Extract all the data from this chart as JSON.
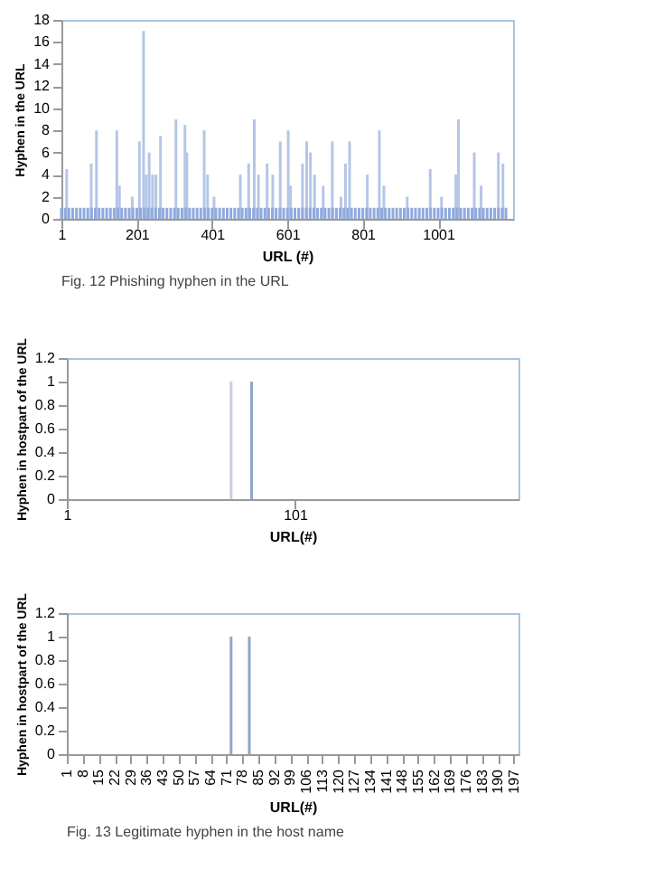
{
  "chart_data": [
    {
      "type": "bar",
      "xlabel": "URL (#)",
      "ylabel": "Hyphen in the URL",
      "xlim": [
        1,
        1200
      ],
      "xticks": [
        1,
        201,
        401,
        601,
        801,
        1001
      ],
      "ylim": [
        0,
        18
      ],
      "yticks": [
        0,
        2,
        4,
        6,
        8,
        10,
        12,
        14,
        16,
        18
      ],
      "annotations": [
        "Fig. 12 Phishing hyphen in the URL"
      ],
      "series": [
        {
          "color": "#b4c6e7",
          "x": [
            15,
            80,
            94,
            148,
            155,
            189,
            208,
            219,
            226,
            234,
            243,
            252,
            264,
            305,
            329,
            334,
            380,
            389,
            406,
            476,
            498,
            513,
            524,
            547,
            562,
            582,
            603,
            609,
            641,
            652,
            662,
            673,
            696,
            720,
            743,
            755,
            766,
            813,
            845,
            857,
            919,
            980,
            1010,
            1048,
            1055,
            1097,
            1115,
            1161,
            1173
          ],
          "values": [
            4.5,
            5,
            8,
            8,
            3,
            2,
            7,
            17,
            4,
            6,
            4,
            4,
            7.5,
            9,
            8.5,
            6,
            8,
            4,
            2,
            4,
            5,
            9,
            4,
            5,
            4,
            7,
            8,
            3,
            5,
            7,
            6,
            4,
            3,
            7,
            2,
            5,
            7,
            4,
            8,
            3,
            2,
            4.5,
            2,
            4,
            9,
            6,
            3,
            6,
            5
          ]
        },
        {
          "color": "#8faadc",
          "x": [
            1,
            11,
            21,
            31,
            41,
            51,
            61,
            71,
            81,
            91,
            101,
            111,
            121,
            131,
            141,
            151,
            161,
            171,
            181,
            191,
            201,
            211,
            221,
            231,
            241,
            251,
            261,
            271,
            281,
            291,
            301,
            311,
            321,
            331,
            341,
            351,
            361,
            371,
            381,
            391,
            401,
            411,
            421,
            431,
            441,
            451,
            461,
            471,
            481,
            491,
            501,
            511,
            521,
            531,
            541,
            551,
            561,
            571,
            581,
            591,
            601,
            611,
            621,
            631,
            641,
            651,
            661,
            671,
            681,
            691,
            701,
            711,
            721,
            731,
            741,
            751,
            761,
            771,
            781,
            791,
            801,
            811,
            821,
            831,
            841,
            851,
            861,
            871,
            881,
            891,
            901,
            911,
            921,
            931,
            941,
            951,
            961,
            971,
            981,
            991,
            1001,
            1011,
            1021,
            1031,
            1041,
            1051,
            1061,
            1071,
            1081,
            1091,
            1101,
            1111,
            1121,
            1131,
            1141,
            1151,
            1161,
            1171,
            1181
          ],
          "values": [
            1,
            1,
            1,
            1,
            1,
            1,
            1,
            1,
            1,
            1,
            1,
            1,
            1,
            1,
            1,
            1,
            1,
            1,
            1,
            1,
            1,
            1,
            1,
            1,
            1,
            1,
            1,
            1,
            1,
            1,
            1,
            1,
            1,
            1,
            1,
            1,
            1,
            1,
            1,
            1,
            1,
            1,
            1,
            1,
            1,
            1,
            1,
            1,
            1,
            1,
            1,
            1,
            1,
            1,
            1,
            1,
            1,
            1,
            1,
            1,
            1,
            1,
            1,
            1,
            1,
            1,
            1,
            1,
            1,
            1,
            1,
            1,
            1,
            1,
            1,
            1,
            1,
            1,
            1,
            1,
            1,
            1,
            1,
            1,
            1,
            1,
            1,
            1,
            1,
            1,
            1,
            1,
            1,
            1,
            1,
            1,
            1,
            1,
            1,
            1,
            1,
            1,
            1,
            1,
            1,
            1,
            1,
            1,
            1,
            1,
            1,
            1,
            1,
            1,
            1,
            1,
            1,
            1,
            1
          ]
        }
      ]
    },
    {
      "type": "bar",
      "xlabel": "URL(#)",
      "ylabel": "Hyphen in hostpart of the URL",
      "xlim": [
        1,
        199
      ],
      "xticks": [
        1,
        101
      ],
      "ylim": [
        0,
        1.2
      ],
      "yticks": [
        0,
        0.2,
        0.4,
        0.6,
        0.8,
        1,
        1.2
      ],
      "series": [
        {
          "color": "#c8d0dc",
          "x": [
            73
          ],
          "values": [
            1
          ]
        },
        {
          "color": "#8ea6c8",
          "x": [
            82
          ],
          "values": [
            1
          ]
        }
      ]
    },
    {
      "type": "bar",
      "xlabel": "URL(#)",
      "ylabel": "Hyphen in hostpart of the URL",
      "xlim": [
        1,
        199
      ],
      "xticks": [
        1,
        8,
        15,
        22,
        29,
        36,
        43,
        50,
        57,
        64,
        71,
        78,
        85,
        92,
        99,
        106,
        113,
        120,
        127,
        134,
        141,
        148,
        155,
        162,
        169,
        176,
        183,
        190,
        197
      ],
      "ylim": [
        0,
        1.2
      ],
      "yticks": [
        0,
        0.2,
        0.4,
        0.6,
        0.8,
        1,
        1.2
      ],
      "annotations": [
        "Fig. 13 Legitimate hyphen in the host name"
      ],
      "series": [
        {
          "color": "#8ea6c8",
          "x": [
            73,
            81
          ],
          "values": [
            1,
            1
          ]
        }
      ]
    }
  ]
}
